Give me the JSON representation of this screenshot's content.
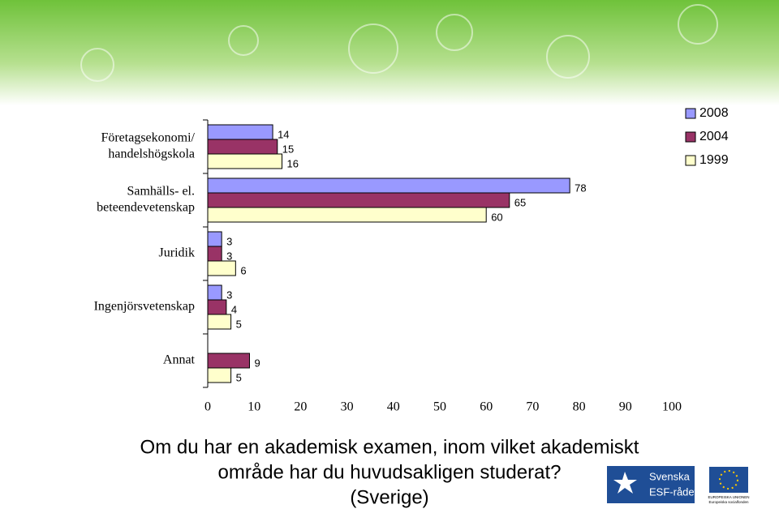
{
  "chart_data": {
    "type": "bar",
    "orientation": "horizontal",
    "title": [
      "Om du har en akademisk examen, inom vilket akademiskt",
      "område har du huvudsakligen studerat?",
      "(Sverige)"
    ],
    "categories": [
      [
        "Företagsekonomi/",
        "handelshögskola"
      ],
      [
        "Samhälls- el.",
        "beteendevetenskap"
      ],
      [
        "Juridik"
      ],
      [
        "Ingenjörsvetenskap"
      ],
      [
        "Annat"
      ]
    ],
    "series": [
      {
        "name": "2008",
        "color": "#9999ff",
        "values": [
          14,
          78,
          3,
          3,
          null
        ]
      },
      {
        "name": "2004",
        "color": "#993366",
        "values": [
          15,
          65,
          3,
          4,
          9
        ]
      },
      {
        "name": "1999",
        "color": "#ffffcc",
        "values": [
          16,
          60,
          6,
          5,
          5
        ]
      }
    ],
    "xlim": [
      0,
      100
    ],
    "xticks": [
      0,
      10,
      20,
      30,
      40,
      50,
      60,
      70,
      80,
      90,
      100
    ],
    "legend": "top-right"
  },
  "logos": {
    "esf": [
      "Svenska",
      "ESF-rådet"
    ],
    "eu": [
      "EUROPEISKA UNIONEN",
      "Europeiska socialfonden"
    ]
  }
}
